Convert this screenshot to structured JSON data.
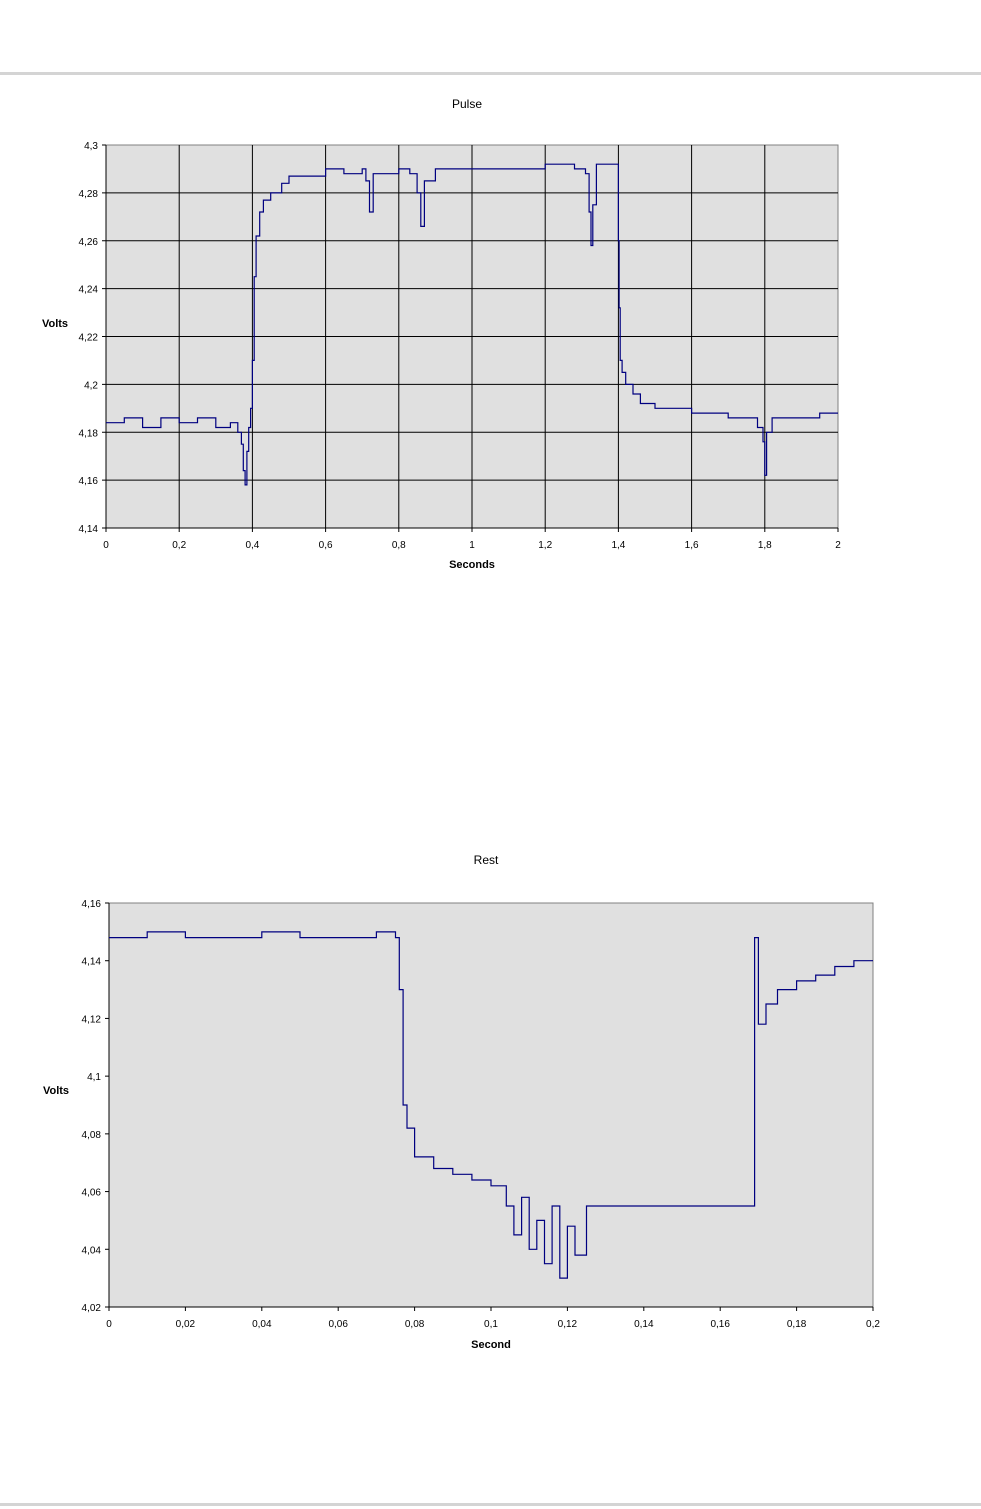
{
  "chart_data": [
    {
      "type": "line",
      "title": "Pulse",
      "xlabel": "Seconds",
      "ylabel": "Volts",
      "xlim": [
        0,
        2
      ],
      "ylim": [
        4.14,
        4.3
      ],
      "x_ticks": [
        "0",
        "0,2",
        "0,4",
        "0,6",
        "0,8",
        "1",
        "1,2",
        "1,4",
        "1,6",
        "1,8",
        "2"
      ],
      "y_ticks": [
        "4,14",
        "4,16",
        "4,18",
        "4,2",
        "4,22",
        "4,24",
        "4,26",
        "4,28",
        "4,3"
      ],
      "grid": true,
      "background": "#e0e0e0",
      "series_color": "#000080",
      "series": [
        {
          "x": [
            0,
            0.05,
            0.1,
            0.15,
            0.2,
            0.25,
            0.3,
            0.34,
            0.36,
            0.37,
            0.375,
            0.38,
            0.385,
            0.39,
            0.395,
            0.4,
            0.405,
            0.41,
            0.42,
            0.43,
            0.45,
            0.48,
            0.5,
            0.55,
            0.6,
            0.65,
            0.7,
            0.71,
            0.72,
            0.73,
            0.8,
            0.83,
            0.85,
            0.86,
            0.87,
            0.9,
            1.0,
            1.1,
            1.2,
            1.28,
            1.31,
            1.32,
            1.325,
            1.33,
            1.34,
            1.36,
            1.38,
            1.395,
            1.4,
            1.402,
            1.405,
            1.41,
            1.42,
            1.44,
            1.46,
            1.5,
            1.6,
            1.7,
            1.75,
            1.78,
            1.795,
            1.8,
            1.805,
            1.82,
            1.9,
            1.95,
            2.0
          ],
          "y": [
            4.184,
            4.186,
            4.182,
            4.186,
            4.184,
            4.186,
            4.182,
            4.184,
            4.18,
            4.175,
            4.164,
            4.158,
            4.172,
            4.182,
            4.19,
            4.21,
            4.245,
            4.262,
            4.272,
            4.277,
            4.28,
            4.284,
            4.287,
            4.287,
            4.29,
            4.288,
            4.29,
            4.285,
            4.272,
            4.288,
            4.29,
            4.288,
            4.28,
            4.266,
            4.285,
            4.29,
            4.29,
            4.29,
            4.292,
            4.29,
            4.288,
            4.272,
            4.258,
            4.275,
            4.292,
            4.292,
            4.292,
            4.292,
            4.26,
            4.232,
            4.21,
            4.205,
            4.2,
            4.196,
            4.192,
            4.19,
            4.188,
            4.186,
            4.186,
            4.182,
            4.176,
            4.162,
            4.18,
            4.186,
            4.186,
            4.188,
            4.188
          ]
        }
      ]
    },
    {
      "type": "line",
      "title": "Rest",
      "xlabel": "Second",
      "ylabel": "Volts",
      "xlim": [
        0,
        0.2
      ],
      "ylim": [
        4.02,
        4.16
      ],
      "x_ticks": [
        "0",
        "0,02",
        "0,04",
        "0,06",
        "0,08",
        "0,1",
        "0,12",
        "0,14",
        "0,16",
        "0,18",
        "0,2"
      ],
      "y_ticks": [
        "4,02",
        "4,04",
        "4,06",
        "4,08",
        "4,1",
        "4,12",
        "4,14",
        "4,16"
      ],
      "grid": false,
      "background": "#e0e0e0",
      "series_color": "#000080",
      "series": [
        {
          "x": [
            0,
            0.01,
            0.02,
            0.03,
            0.04,
            0.05,
            0.06,
            0.07,
            0.075,
            0.076,
            0.077,
            0.078,
            0.08,
            0.085,
            0.09,
            0.095,
            0.1,
            0.104,
            0.106,
            0.108,
            0.11,
            0.112,
            0.114,
            0.116,
            0.118,
            0.12,
            0.122,
            0.125,
            0.13,
            0.14,
            0.15,
            0.16,
            0.168,
            0.169,
            0.17,
            0.172,
            0.175,
            0.18,
            0.185,
            0.19,
            0.195,
            0.2
          ],
          "y": [
            4.148,
            4.15,
            4.148,
            4.148,
            4.15,
            4.148,
            4.148,
            4.15,
            4.148,
            4.13,
            4.09,
            4.082,
            4.072,
            4.068,
            4.066,
            4.064,
            4.062,
            4.055,
            4.045,
            4.058,
            4.04,
            4.05,
            4.035,
            4.055,
            4.03,
            4.048,
            4.038,
            4.055,
            4.055,
            4.055,
            4.055,
            4.055,
            4.055,
            4.148,
            4.118,
            4.125,
            4.13,
            4.133,
            4.135,
            4.138,
            4.14,
            4.14
          ]
        }
      ]
    }
  ]
}
